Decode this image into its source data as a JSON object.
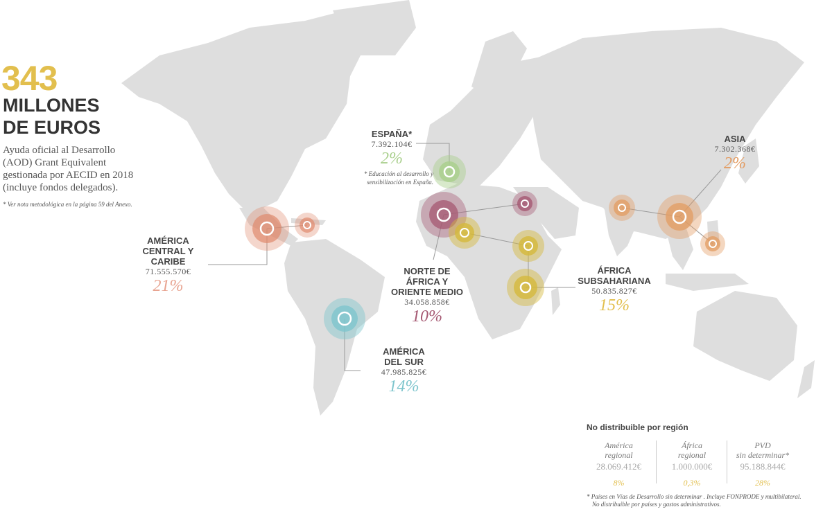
{
  "headline": {
    "number": "343",
    "unit_line1": "MILLONES",
    "unit_line2": "DE EUROS",
    "description": "Ayuda oficial al Desarrollo (AOD) Grant Equivalent gestionada por AECID en 2018 (incluye fondos delegados).",
    "note": "* Ver nota metodológica en la página 59 del Anexo."
  },
  "colors": {
    "map_land": "#dedede",
    "headline_gold": "#e2bf4e",
    "america_central": "#e08a6e",
    "norte_africa": "#a55872",
    "espana": "#a9cf8c",
    "asia": "#e39c62",
    "africa_sub": "#d4b93c",
    "america_sur": "#7ec5cd"
  },
  "regions": {
    "espana": {
      "name": "ESPAÑA*",
      "amount": "7.392.104€",
      "pct": "2%",
      "note": "* Educación al desarrollo y sensibilización en España."
    },
    "asia": {
      "name": "ASIA",
      "amount": "7.302.368€",
      "pct": "2%"
    },
    "america_central": {
      "name": "AMÉRICA\nCENTRAL Y\nCARIBE",
      "amount": "71.555.570€",
      "pct": "21%"
    },
    "norte_africa": {
      "name": "NORTE DE\nÁFRICA Y\nORIENTE MEDIO",
      "amount": "34.058.858€",
      "pct": "10%"
    },
    "africa_sub": {
      "name": "ÁFRICA\nSUBSAHARIANA",
      "amount": "50.835.827€",
      "pct": "15%"
    },
    "america_sur": {
      "name": "AMÉRICA\nDEL SUR",
      "amount": "47.985.825€",
      "pct": "14%"
    }
  },
  "no_distribuible": {
    "title": "No distribuible por región",
    "columns": [
      {
        "label": "América\nregional",
        "amount": "28.069.412€",
        "pct": "8%"
      },
      {
        "label": "África\nregional",
        "amount": "1.000.000€",
        "pct": "0,3%"
      },
      {
        "label": "PVD\nsin determinar*",
        "amount": "95.188.844€",
        "pct": "28%"
      }
    ],
    "footnote_line1": "* Países en Vías de Desarrollo sin determinar . Incluye FONPRODE y multibilateral.",
    "footnote_line2": "No distribuible por países y gastos administrativos."
  }
}
